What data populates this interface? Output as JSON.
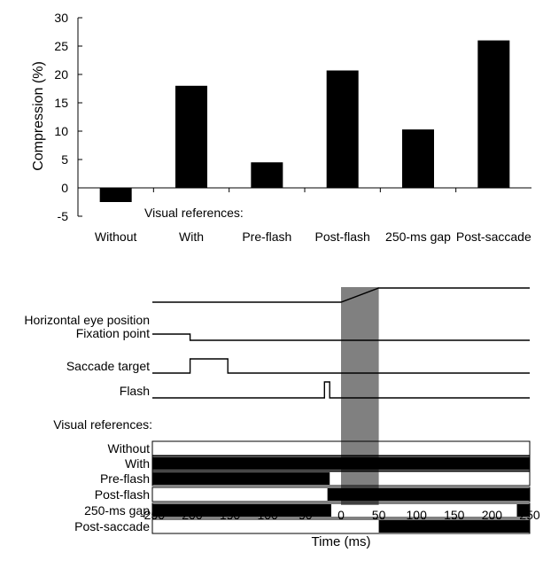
{
  "chart_data": [
    {
      "type": "bar",
      "ylabel": "Compression (%)",
      "xlabel": "",
      "ylim": [
        -5,
        30
      ],
      "yticks": [
        -5,
        0,
        5,
        10,
        15,
        20,
        25,
        30
      ],
      "group_label": "Visual references:",
      "categories": [
        "Without",
        "With",
        "Pre-flash",
        "Post-flash",
        "250-ms gap",
        "Post-saccade"
      ],
      "values": [
        -2.5,
        18,
        4.5,
        20.7,
        10.3,
        26
      ],
      "bar_color": "#000000"
    },
    {
      "type": "timeline",
      "xlabel": "Time (ms)",
      "xlim": [
        -250,
        250
      ],
      "xticks": [
        -250,
        -200,
        -150,
        -100,
        -50,
        0,
        50,
        100,
        150,
        200,
        250
      ],
      "shaded_interval": [
        0,
        50
      ],
      "shade_color": "#808080",
      "traces": [
        {
          "label": "Horizontal eye position",
          "points": [
            [
              -250,
              0
            ],
            [
              0,
              0
            ],
            [
              50,
              1
            ],
            [
              250,
              1
            ]
          ]
        },
        {
          "label": "Fixation point",
          "points": [
            [
              -250,
              1
            ],
            [
              -200,
              1
            ],
            [
              -200,
              0
            ],
            [
              250,
              0
            ]
          ]
        },
        {
          "label": "Saccade target",
          "points": [
            [
              -250,
              0
            ],
            [
              -200,
              0
            ],
            [
              -200,
              1
            ],
            [
              -150,
              1
            ],
            [
              -150,
              0
            ],
            [
              250,
              0
            ]
          ]
        },
        {
          "label": "Flash",
          "points": [
            [
              -250,
              0
            ],
            [
              -22,
              0
            ],
            [
              -22,
              1
            ],
            [
              -15,
              1
            ],
            [
              -15,
              0
            ],
            [
              250,
              0
            ]
          ]
        }
      ],
      "reference_heading": "Visual references:",
      "references": [
        {
          "label": "Without",
          "intervals": []
        },
        {
          "label": "With",
          "intervals": [
            [
              -250,
              250
            ]
          ]
        },
        {
          "label": "Pre-flash",
          "intervals": [
            [
              -250,
              -15
            ]
          ]
        },
        {
          "label": "Post-flash",
          "intervals": [
            [
              -18,
              250
            ]
          ]
        },
        {
          "label": "250-ms gap",
          "intervals": [
            [
              -250,
              -13
            ],
            [
              233,
              250
            ]
          ]
        },
        {
          "label": "Post-saccade",
          "intervals": [
            [
              50,
              250
            ]
          ]
        }
      ]
    }
  ]
}
